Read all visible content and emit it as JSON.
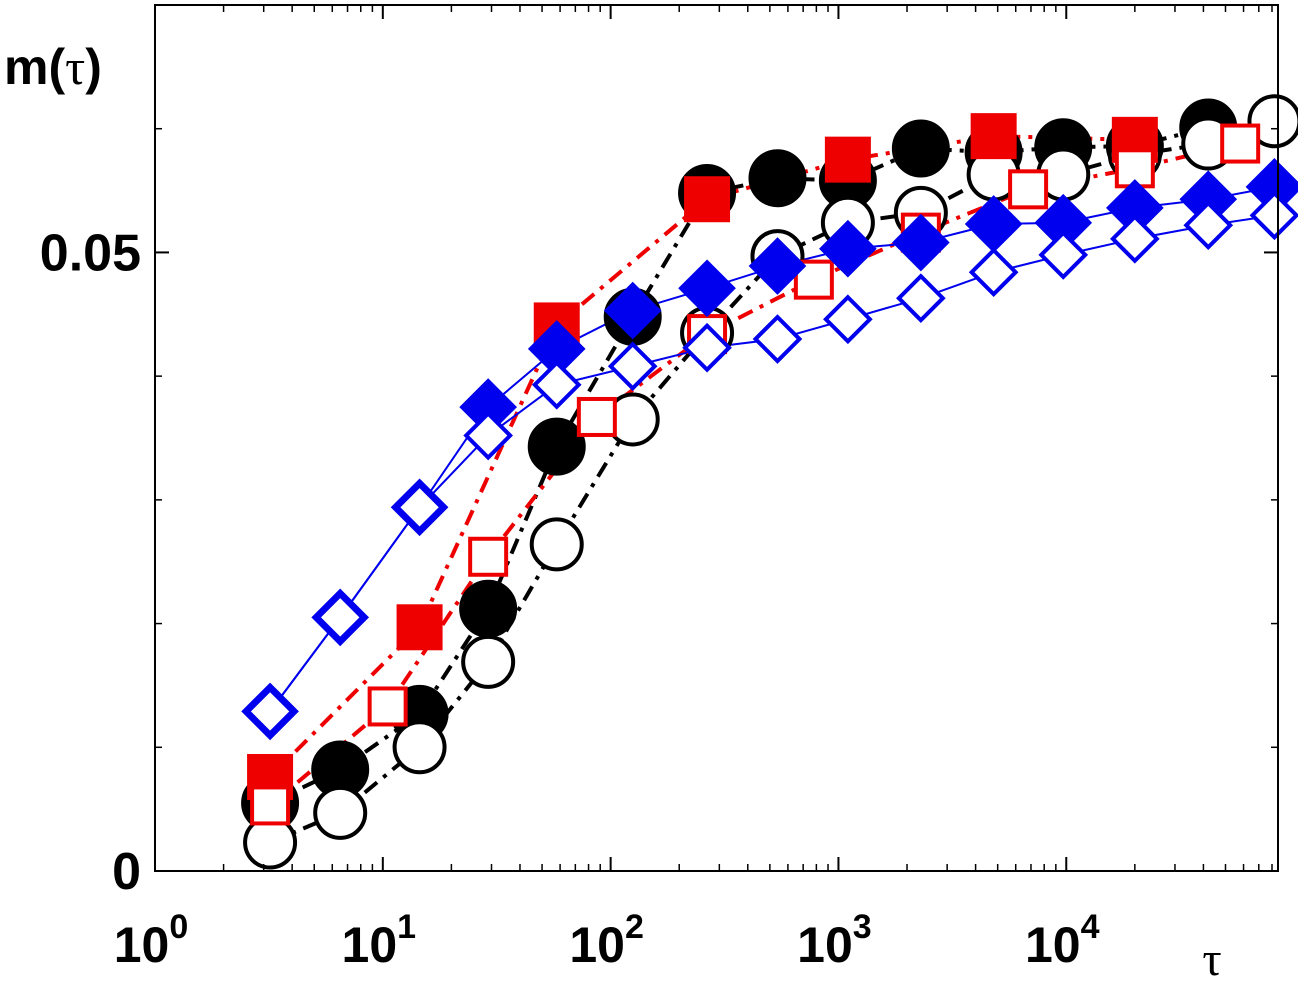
{
  "chart_data": {
    "type": "scatter",
    "title": "",
    "xlabel": "τ",
    "ylabel_main": "m(",
    "ylabel_symbol": "τ",
    "ylabel_close": ")",
    "x_scale": "log",
    "xlim": [
      1,
      85000
    ],
    "ylim": [
      0,
      0.07
    ],
    "grid": false,
    "legend": "none",
    "x_ticks": [
      {
        "value": 1,
        "base": "10",
        "exp": "0"
      },
      {
        "value": 10,
        "base": "10",
        "exp": "1"
      },
      {
        "value": 100,
        "base": "10",
        "exp": "2"
      },
      {
        "value": 1000,
        "base": "10",
        "exp": "3"
      },
      {
        "value": 10000,
        "base": "10",
        "exp": "4"
      }
    ],
    "y_ticks": [
      {
        "value": 0,
        "label": "0"
      },
      {
        "value": 0.05,
        "label": "0.05"
      }
    ],
    "y_minor_ticks": [
      0.01,
      0.02,
      0.03,
      0.04,
      0.06
    ],
    "series": [
      {
        "marker": "circle",
        "filled": true,
        "color": "#000000",
        "line": "dashdot",
        "x": [
          3.2,
          6.5,
          14.5,
          29,
          58,
          125,
          265,
          540,
          1100,
          2300,
          4800,
          9700,
          20000,
          42000
        ],
        "y": [
          0.0055,
          0.0082,
          0.0127,
          0.0212,
          0.0343,
          0.0448,
          0.0548,
          0.056,
          0.0558,
          0.0584,
          0.0581,
          0.0585,
          0.0586,
          0.0601
        ]
      },
      {
        "marker": "circle",
        "filled": false,
        "color": "#000000",
        "line": "dashdot",
        "x": [
          3.2,
          6.5,
          14.5,
          29,
          58,
          125,
          265,
          540,
          1100,
          2300,
          4800,
          9700,
          20000,
          42000,
          82000
        ],
        "y": [
          0.0023,
          0.0047,
          0.01,
          0.0169,
          0.0264,
          0.0365,
          0.0435,
          0.0497,
          0.0524,
          0.0532,
          0.0563,
          0.0563,
          0.0579,
          0.0588,
          0.0606
        ]
      },
      {
        "marker": "square",
        "filled": true,
        "color": "#ee0000",
        "line": "dashdot",
        "x": [
          3.2,
          14.5,
          58,
          265,
          1100,
          4800,
          20000
        ],
        "y": [
          0.0076,
          0.0197,
          0.0441,
          0.0543,
          0.0575,
          0.0594,
          0.0591
        ]
      },
      {
        "marker": "square",
        "filled": false,
        "color": "#ee0000",
        "line": "dashdot",
        "x": [
          3.2,
          10.5,
          29,
          87,
          265,
          780,
          2300,
          6800,
          20000,
          58000
        ],
        "y": [
          0.0053,
          0.0133,
          0.0254,
          0.0367,
          0.0434,
          0.0478,
          0.0516,
          0.0551,
          0.0568,
          0.0588
        ]
      },
      {
        "marker": "diamond",
        "filled": true,
        "color": "#0000ee",
        "line": "solid",
        "x": [
          3.2,
          6.5,
          14.5,
          29,
          58,
          125,
          265,
          540,
          1100,
          2300,
          4800,
          9700,
          20000,
          42000,
          82000
        ],
        "y": [
          0.0129,
          0.0205,
          0.0294,
          0.0375,
          0.0422,
          0.0453,
          0.0471,
          0.0489,
          0.0503,
          0.0508,
          0.0523,
          0.0524,
          0.0536,
          0.0543,
          0.0553
        ]
      },
      {
        "marker": "diamond",
        "filled": false,
        "color": "#0000ee",
        "line": "solid",
        "x": [
          3.2,
          6.5,
          14.5,
          29,
          58,
          125,
          265,
          540,
          1100,
          2300,
          4800,
          9700,
          20000,
          42000,
          82000
        ],
        "y": [
          0.0129,
          0.0205,
          0.0294,
          0.0352,
          0.0393,
          0.0408,
          0.0423,
          0.043,
          0.0446,
          0.0463,
          0.0484,
          0.0498,
          0.0511,
          0.0522,
          0.053
        ]
      }
    ]
  }
}
